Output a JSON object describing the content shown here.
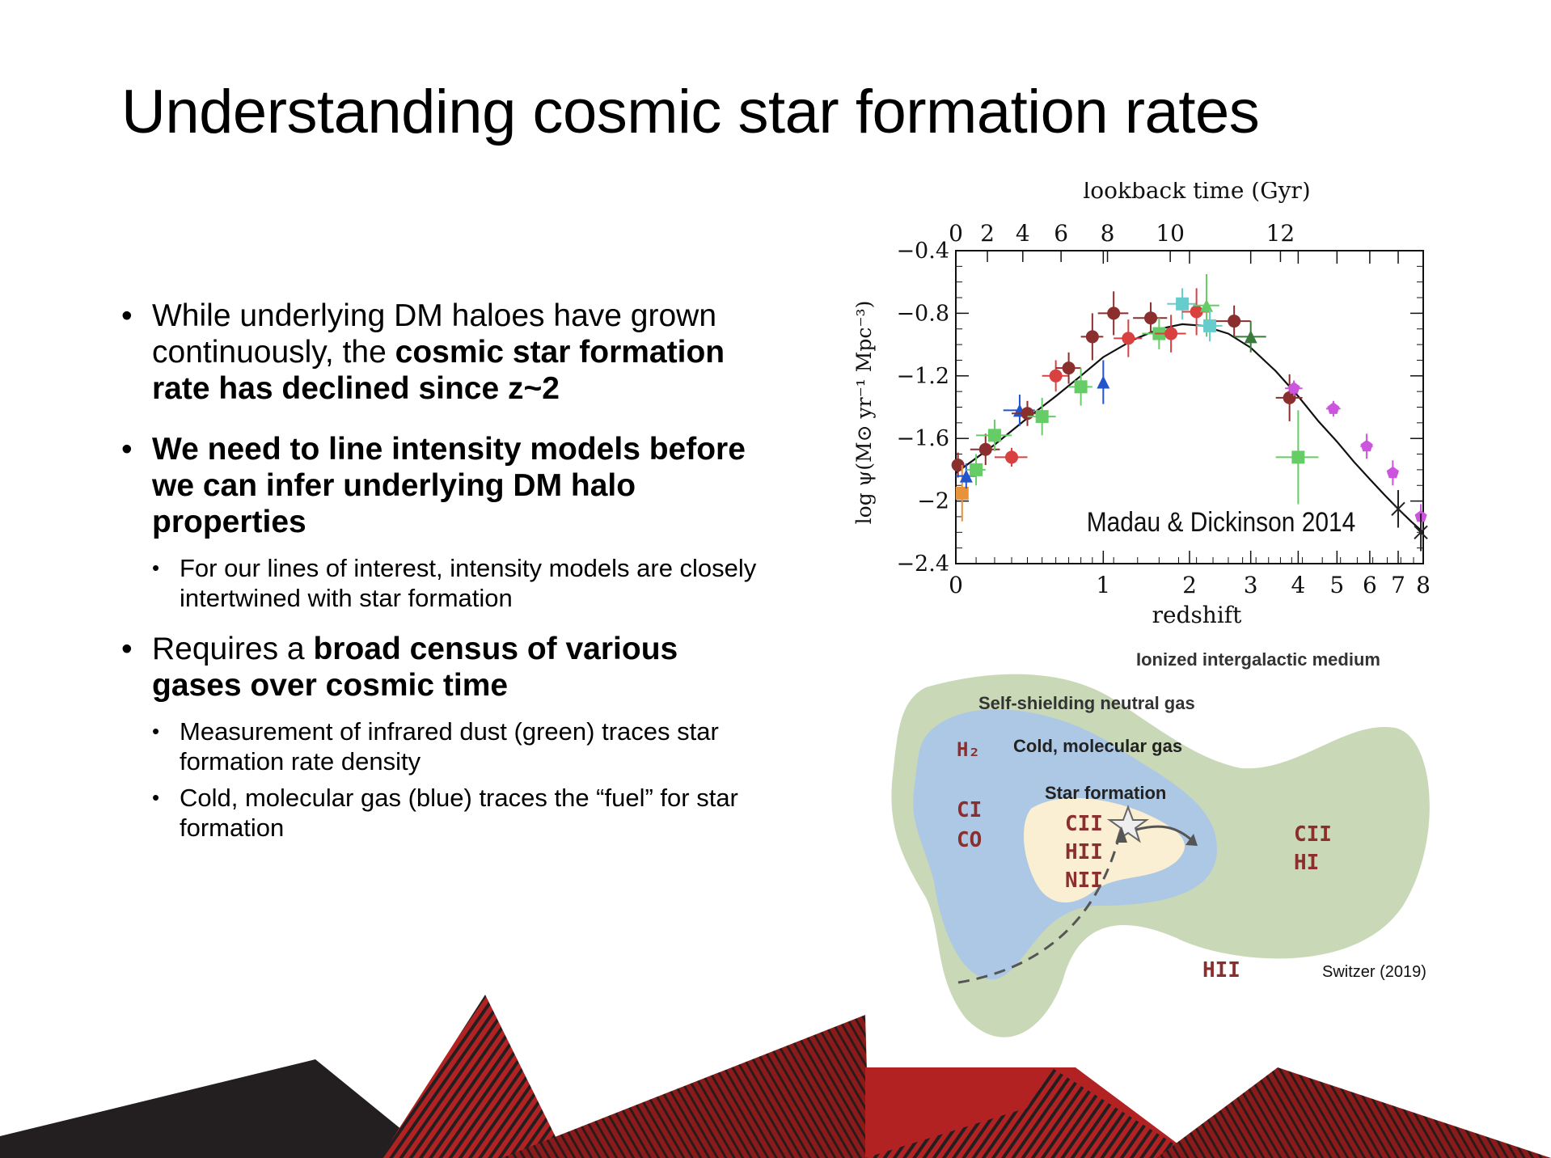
{
  "slide": {
    "title": "Understanding cosmic star formation rates",
    "bullets": [
      {
        "pre": "While underlying DM haloes have grown continuously, the ",
        "bold": "cosmic star formation rate has declined since z~2"
      },
      {
        "bold": "We need to line intensity models before we can infer underlying DM halo properties"
      },
      {
        "sub": "For our lines of interest, intensity models are closely intertwined with star formation"
      },
      {
        "pre": "Requires a ",
        "bold": "broad census of various gases over cosmic time"
      },
      {
        "sub": "Measurement of infrared dust (green) traces star formation rate density"
      },
      {
        "sub": "Cold, molecular gas (blue) traces the “fuel” for star formation"
      }
    ]
  },
  "chart_data": {
    "type": "scatter",
    "title": "",
    "annotation": "Madau & Dickinson 2014",
    "xlabel": "redshift",
    "ylabel": "log ψ(M⊙ yr⁻¹ Mpc⁻³)",
    "x_scale": "log(1+z)",
    "xlim": [
      0,
      8
    ],
    "ylim": [
      -2.4,
      -0.4
    ],
    "x_ticks": [
      "0",
      "1",
      "2",
      "3",
      "4",
      "5",
      "6",
      "7",
      "8"
    ],
    "y_ticks": [
      "−0.4",
      "−0.8",
      "−1.2",
      "−1.6",
      "−2",
      "−2.4"
    ],
    "top_axis_label": "lookback time (Gyr)",
    "top_ticks": [
      "0",
      "2",
      "4",
      "6",
      "8",
      "10",
      "12"
    ],
    "top_tick_z": [
      0,
      0.16,
      0.37,
      0.64,
      1.04,
      1.74,
      3.6
    ],
    "grid": false,
    "fit_curve": [
      {
        "z": 0.0,
        "y": -1.82
      },
      {
        "z": 0.2,
        "y": -1.64
      },
      {
        "z": 0.4,
        "y": -1.47
      },
      {
        "z": 0.6,
        "y": -1.33
      },
      {
        "z": 0.8,
        "y": -1.2
      },
      {
        "z": 1.0,
        "y": -1.08
      },
      {
        "z": 1.3,
        "y": -0.97
      },
      {
        "z": 1.6,
        "y": -0.9
      },
      {
        "z": 1.9,
        "y": -0.87
      },
      {
        "z": 2.2,
        "y": -0.88
      },
      {
        "z": 2.6,
        "y": -0.93
      },
      {
        "z": 3.0,
        "y": -1.02
      },
      {
        "z": 3.5,
        "y": -1.17
      },
      {
        "z": 4.0,
        "y": -1.33
      },
      {
        "z": 4.5,
        "y": -1.49
      },
      {
        "z": 5.0,
        "y": -1.62
      },
      {
        "z": 5.5,
        "y": -1.75
      },
      {
        "z": 6.0,
        "y": -1.86
      },
      {
        "z": 6.5,
        "y": -1.96
      },
      {
        "z": 7.0,
        "y": -2.05
      },
      {
        "z": 7.5,
        "y": -2.13
      },
      {
        "z": 8.0,
        "y": -2.2
      }
    ],
    "points": [
      {
        "z": 0.01,
        "y": -1.77,
        "xerr": 0.02,
        "yerr": 0.08,
        "color": "#8b2e2e",
        "marker": "circle"
      },
      {
        "z": 0.03,
        "y": -1.95,
        "xerr": 0.02,
        "yerr": 0.18,
        "color": "#e8923a",
        "marker": "square"
      },
      {
        "z": 0.05,
        "y": -1.84,
        "xerr": 0.05,
        "yerr": 0.08,
        "color": "#2255cc",
        "marker": "triangle"
      },
      {
        "z": 0.1,
        "y": -1.8,
        "xerr": 0.05,
        "yerr": 0.1,
        "color": "#66cc66",
        "marker": "square"
      },
      {
        "z": 0.15,
        "y": -1.67,
        "xerr": 0.08,
        "yerr": 0.1,
        "color": "#8b2e2e",
        "marker": "circle"
      },
      {
        "z": 0.2,
        "y": -1.58,
        "xerr": 0.1,
        "yerr": 0.1,
        "color": "#66cc66",
        "marker": "square"
      },
      {
        "z": 0.3,
        "y": -1.72,
        "xerr": 0.1,
        "yerr": 0.06,
        "color": "#d94040",
        "marker": "circle"
      },
      {
        "z": 0.35,
        "y": -1.42,
        "xerr": 0.1,
        "yerr": 0.1,
        "color": "#2255cc",
        "marker": "triangle"
      },
      {
        "z": 0.4,
        "y": -1.44,
        "xerr": 0.1,
        "yerr": 0.08,
        "color": "#8b2e2e",
        "marker": "circle"
      },
      {
        "z": 0.5,
        "y": -1.46,
        "xerr": 0.1,
        "yerr": 0.12,
        "color": "#66cc66",
        "marker": "square"
      },
      {
        "z": 0.6,
        "y": -1.2,
        "xerr": 0.1,
        "yerr": 0.1,
        "color": "#d94040",
        "marker": "circle"
      },
      {
        "z": 0.7,
        "y": -1.15,
        "xerr": 0.1,
        "yerr": 0.1,
        "color": "#8b2e2e",
        "marker": "circle"
      },
      {
        "z": 0.8,
        "y": -1.27,
        "xerr": 0.1,
        "yerr": 0.12,
        "color": "#66cc66",
        "marker": "square"
      },
      {
        "z": 0.9,
        "y": -0.95,
        "xerr": 0.1,
        "yerr": 0.15,
        "color": "#8b2e2e",
        "marker": "circle"
      },
      {
        "z": 1.0,
        "y": -1.24,
        "xerr": 0.0,
        "yerr": 0.14,
        "color": "#2255cc",
        "marker": "triangle"
      },
      {
        "z": 1.1,
        "y": -0.8,
        "xerr": 0.15,
        "yerr": 0.14,
        "color": "#8b2e2e",
        "marker": "circle"
      },
      {
        "z": 1.25,
        "y": -0.96,
        "xerr": 0.15,
        "yerr": 0.12,
        "color": "#d94040",
        "marker": "circle"
      },
      {
        "z": 1.5,
        "y": -0.83,
        "xerr": 0.2,
        "yerr": 0.1,
        "color": "#8b2e2e",
        "marker": "circle"
      },
      {
        "z": 1.6,
        "y": -0.93,
        "xerr": 0.2,
        "yerr": 0.1,
        "color": "#66cc66",
        "marker": "square"
      },
      {
        "z": 1.75,
        "y": -0.93,
        "xerr": 0.2,
        "yerr": 0.12,
        "color": "#d94040",
        "marker": "circle"
      },
      {
        "z": 1.9,
        "y": -0.74,
        "xerr": 0.2,
        "yerr": 0.1,
        "color": "#66cccc",
        "marker": "square"
      },
      {
        "z": 2.1,
        "y": -0.79,
        "xerr": 0.2,
        "yerr": 0.15,
        "color": "#d94040",
        "marker": "circle"
      },
      {
        "z": 2.25,
        "y": -0.75,
        "xerr": 0.2,
        "yerr": 0.2,
        "color": "#66cc66",
        "marker": "triangle"
      },
      {
        "z": 2.3,
        "y": -0.88,
        "xerr": 0.2,
        "yerr": 0.1,
        "color": "#66cccc",
        "marker": "square"
      },
      {
        "z": 2.7,
        "y": -0.85,
        "xerr": 0.3,
        "yerr": 0.1,
        "color": "#8b2e2e",
        "marker": "circle"
      },
      {
        "z": 3.0,
        "y": -0.95,
        "xerr": 0.3,
        "yerr": 0.1,
        "color": "#3a7a3a",
        "marker": "triangle"
      },
      {
        "z": 3.8,
        "y": -1.34,
        "xerr": 0.3,
        "yerr": 0.15,
        "color": "#8b2e2e",
        "marker": "circle"
      },
      {
        "z": 3.9,
        "y": -1.28,
        "xerr": 0.2,
        "yerr": 0.05,
        "color": "#cc55dd",
        "marker": "pentagon"
      },
      {
        "z": 4.0,
        "y": -1.72,
        "xerr": 0.5,
        "yerr": 0.3,
        "color": "#66cc66",
        "marker": "square"
      },
      {
        "z": 4.9,
        "y": -1.41,
        "xerr": 0.2,
        "yerr": 0.05,
        "color": "#cc55dd",
        "marker": "pentagon"
      },
      {
        "z": 5.9,
        "y": -1.65,
        "xerr": 0.2,
        "yerr": 0.08,
        "color": "#cc55dd",
        "marker": "pentagon"
      },
      {
        "z": 6.8,
        "y": -1.82,
        "xerr": 0.2,
        "yerr": 0.08,
        "color": "#cc55dd",
        "marker": "pentagon"
      },
      {
        "z": 7.0,
        "y": -2.05,
        "xerr": 0.0,
        "yerr": 0.12,
        "color": "#222222",
        "marker": "cross"
      },
      {
        "z": 7.9,
        "y": -2.1,
        "xerr": 0.0,
        "yerr": 0.08,
        "color": "#cc55dd",
        "marker": "pentagon"
      },
      {
        "z": 7.9,
        "y": -2.2,
        "xerr": 0.0,
        "yerr": 0.12,
        "color": "#222222",
        "marker": "cross"
      }
    ]
  },
  "diagram": {
    "outer_label": "Ionized intergalactic medium",
    "neutral_label": "Self-shielding neutral gas",
    "molecular_label": "Cold, molecular gas",
    "sf_label": "Star formation",
    "mol_lines": [
      "H₂",
      "CI",
      "CO"
    ],
    "sf_lines": [
      "CII",
      "HII",
      "NII"
    ],
    "neutral_lines": [
      "CII",
      "HI"
    ],
    "igm_line": "HII",
    "credit": "Switzer (2019)",
    "colors": {
      "outer": "#c9d8b6",
      "molecular": "#adc8e4",
      "sf": "#fbefd3",
      "line_text": "#8b2e2e"
    }
  },
  "theme": {
    "accent": "#b22222",
    "dark": "#231f20",
    "accent_dark": "#8b1a1a"
  }
}
